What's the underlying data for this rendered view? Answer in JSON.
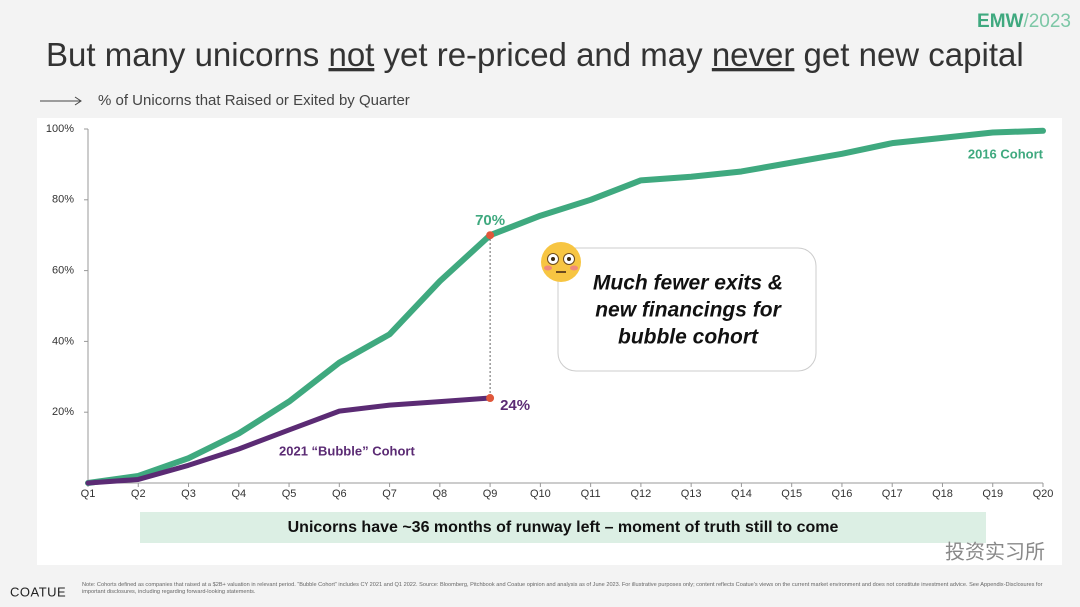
{
  "brand": "EMW",
  "brand_year": "/2023",
  "title": [
    {
      "text": "But many unicorns "
    },
    {
      "text": "not",
      "underline": true
    },
    {
      "text": " yet re-priced and may "
    },
    {
      "text": "never",
      "underline": true
    },
    {
      "text": " get new capital"
    }
  ],
  "chart_data": {
    "type": "line",
    "subtitle": "% of Unicorns that Raised or Exited by Quarter",
    "categories": [
      "Q1",
      "Q2",
      "Q3",
      "Q4",
      "Q5",
      "Q6",
      "Q7",
      "Q8",
      "Q9",
      "Q10",
      "Q11",
      "Q12",
      "Q13",
      "Q14",
      "Q15",
      "Q16",
      "Q17",
      "Q18",
      "Q19",
      "Q20"
    ],
    "series": [
      {
        "name": "2016 Cohort",
        "color": "#3fa97f",
        "values": [
          0,
          2,
          7,
          14,
          23,
          34,
          42,
          57,
          70,
          75.5,
          80,
          85.5,
          86.5,
          88,
          90.5,
          93,
          96,
          97.5,
          99,
          99.5
        ],
        "value_labels": [
          null,
          null,
          null,
          null,
          null,
          null,
          null,
          null,
          "70%",
          null,
          null,
          null,
          null,
          null,
          null,
          null,
          null,
          null,
          null,
          null
        ]
      },
      {
        "name": "2021 “Bubble” Cohort",
        "color": "#5b2b74",
        "values": [
          0,
          1,
          5,
          9.6,
          15,
          20.3,
          22,
          23,
          24,
          null,
          null,
          null,
          null,
          null,
          null,
          null,
          null,
          null,
          null,
          null
        ],
        "value_labels": [
          null,
          null,
          null,
          null,
          null,
          null,
          null,
          null,
          "24%",
          null,
          null,
          null,
          null,
          null,
          null,
          null,
          null,
          null,
          null,
          null
        ]
      }
    ],
    "ylim": [
      0,
      100
    ],
    "yticks": [
      {
        "value": 20,
        "label": "20%"
      },
      {
        "value": 40,
        "label": "40%"
      },
      {
        "value": 60,
        "label": "60%"
      },
      {
        "value": 80,
        "label": "80%"
      },
      {
        "value": 100,
        "label": "100%"
      }
    ],
    "callout": [
      "Much fewer exits &",
      "new financings for",
      "bubble cohort"
    ],
    "banner": "Unicorns have ~36 months of runway left – moment of truth still to come"
  },
  "footer": {
    "logo": "COATUE",
    "note": "Note: Cohorts defined as companies that raised at a $2B+ valuation in relevant period. “Bubble Cohort” includes CY 2021 and Q1 2022. Source: Bloomberg, Pitchbook and Coatue opinion and analysis as of June 2023. For illustrative purposes only; content reflects Coatue’s views on the current market environment and does not constitute investment advice. See Appendix-Disclosures for important disclosures, including regarding forward-looking statements.",
    "watermark": "投资实习所"
  }
}
